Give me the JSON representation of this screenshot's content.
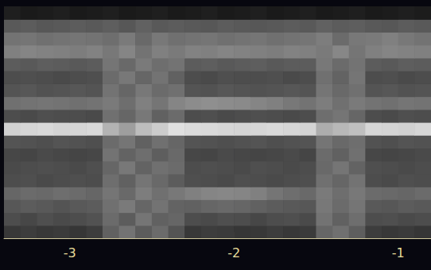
{
  "chart_data": {
    "type": "heatmap",
    "xlim": [
      -3.4,
      -0.8
    ],
    "xticks": [
      -3,
      -2,
      -1
    ],
    "ylim": [
      0,
      18
    ],
    "tick_labels": "x",
    "color_range": [
      0,
      1
    ],
    "x_bins": [
      -3.4,
      -3.3,
      -3.2,
      -3.1,
      -3.0,
      -2.9,
      -2.8,
      -2.7,
      -2.6,
      -2.5,
      -2.4,
      -2.3,
      -2.2,
      -2.1,
      -2.0,
      -1.9,
      -1.8,
      -1.7,
      -1.6,
      -1.5,
      -1.4,
      -1.3,
      -1.2,
      -1.1,
      -1.0,
      -0.9,
      -0.8
    ],
    "y_bins": [
      0,
      1,
      2,
      3,
      4,
      5,
      6,
      7,
      8,
      9,
      10,
      11,
      12,
      13,
      14,
      15,
      16,
      17,
      18
    ],
    "cells": [
      [
        0.22,
        0.24,
        0.22,
        0.23,
        0.21,
        0.24,
        0.38,
        0.45,
        0.36,
        0.42,
        0.33,
        0.22,
        0.24,
        0.23,
        0.21,
        0.22,
        0.24,
        0.22,
        0.23,
        0.4,
        0.44,
        0.37,
        0.24,
        0.22,
        0.23,
        0.21
      ],
      [
        0.3,
        0.28,
        0.31,
        0.29,
        0.3,
        0.32,
        0.42,
        0.36,
        0.46,
        0.38,
        0.4,
        0.3,
        0.29,
        0.31,
        0.3,
        0.28,
        0.3,
        0.31,
        0.29,
        0.45,
        0.38,
        0.43,
        0.3,
        0.31,
        0.29,
        0.3
      ],
      [
        0.34,
        0.36,
        0.35,
        0.33,
        0.35,
        0.36,
        0.44,
        0.48,
        0.4,
        0.45,
        0.39,
        0.38,
        0.4,
        0.41,
        0.4,
        0.38,
        0.36,
        0.35,
        0.34,
        0.47,
        0.42,
        0.46,
        0.35,
        0.34,
        0.36,
        0.35
      ],
      [
        0.4,
        0.42,
        0.41,
        0.43,
        0.42,
        0.4,
        0.46,
        0.41,
        0.49,
        0.44,
        0.47,
        0.5,
        0.52,
        0.53,
        0.52,
        0.5,
        0.46,
        0.43,
        0.41,
        0.48,
        0.43,
        0.47,
        0.42,
        0.41,
        0.4,
        0.42
      ],
      [
        0.3,
        0.31,
        0.29,
        0.3,
        0.31,
        0.3,
        0.43,
        0.38,
        0.46,
        0.41,
        0.36,
        0.31,
        0.3,
        0.29,
        0.31,
        0.3,
        0.29,
        0.3,
        0.31,
        0.44,
        0.4,
        0.45,
        0.3,
        0.29,
        0.31,
        0.3
      ],
      [
        0.29,
        0.3,
        0.31,
        0.3,
        0.29,
        0.31,
        0.4,
        0.47,
        0.39,
        0.44,
        0.42,
        0.3,
        0.31,
        0.3,
        0.29,
        0.31,
        0.3,
        0.29,
        0.3,
        0.41,
        0.46,
        0.39,
        0.31,
        0.3,
        0.29,
        0.3
      ],
      [
        0.28,
        0.27,
        0.29,
        0.28,
        0.27,
        0.28,
        0.45,
        0.39,
        0.43,
        0.37,
        0.41,
        0.28,
        0.27,
        0.29,
        0.28,
        0.27,
        0.28,
        0.29,
        0.27,
        0.42,
        0.38,
        0.44,
        0.28,
        0.27,
        0.28,
        0.29
      ],
      [
        0.33,
        0.32,
        0.31,
        0.33,
        0.32,
        0.31,
        0.42,
        0.46,
        0.38,
        0.44,
        0.4,
        0.33,
        0.32,
        0.31,
        0.32,
        0.33,
        0.31,
        0.32,
        0.33,
        0.46,
        0.41,
        0.43,
        0.32,
        0.31,
        0.33,
        0.32
      ],
      [
        0.82,
        0.84,
        0.85,
        0.83,
        0.84,
        0.85,
        0.7,
        0.62,
        0.74,
        0.8,
        0.88,
        0.86,
        0.85,
        0.84,
        0.83,
        0.84,
        0.85,
        0.84,
        0.83,
        0.68,
        0.72,
        0.75,
        0.84,
        0.83,
        0.82,
        0.84
      ],
      [
        0.3,
        0.29,
        0.31,
        0.3,
        0.3,
        0.29,
        0.44,
        0.4,
        0.47,
        0.38,
        0.42,
        0.3,
        0.31,
        0.29,
        0.3,
        0.31,
        0.3,
        0.29,
        0.3,
        0.43,
        0.46,
        0.4,
        0.3,
        0.29,
        0.31,
        0.3
      ],
      [
        0.44,
        0.45,
        0.46,
        0.45,
        0.44,
        0.45,
        0.48,
        0.43,
        0.5,
        0.46,
        0.52,
        0.55,
        0.56,
        0.55,
        0.54,
        0.52,
        0.5,
        0.47,
        0.45,
        0.49,
        0.44,
        0.48,
        0.45,
        0.44,
        0.46,
        0.45
      ],
      [
        0.33,
        0.34,
        0.32,
        0.33,
        0.34,
        0.33,
        0.45,
        0.4,
        0.47,
        0.42,
        0.44,
        0.33,
        0.32,
        0.34,
        0.33,
        0.32,
        0.33,
        0.34,
        0.33,
        0.46,
        0.41,
        0.44,
        0.33,
        0.34,
        0.32,
        0.33
      ],
      [
        0.3,
        0.31,
        0.3,
        0.29,
        0.3,
        0.31,
        0.42,
        0.47,
        0.4,
        0.45,
        0.38,
        0.3,
        0.29,
        0.31,
        0.3,
        0.3,
        0.31,
        0.29,
        0.3,
        0.44,
        0.39,
        0.46,
        0.3,
        0.31,
        0.29,
        0.3
      ],
      [
        0.36,
        0.35,
        0.37,
        0.36,
        0.35,
        0.36,
        0.46,
        0.41,
        0.48,
        0.43,
        0.45,
        0.36,
        0.37,
        0.35,
        0.36,
        0.37,
        0.35,
        0.36,
        0.36,
        0.47,
        0.42,
        0.45,
        0.36,
        0.35,
        0.37,
        0.36
      ],
      [
        0.5,
        0.52,
        0.51,
        0.5,
        0.49,
        0.51,
        0.47,
        0.52,
        0.45,
        0.5,
        0.48,
        0.51,
        0.5,
        0.52,
        0.51,
        0.5,
        0.49,
        0.51,
        0.5,
        0.48,
        0.53,
        0.46,
        0.5,
        0.52,
        0.51,
        0.5
      ],
      [
        0.45,
        0.46,
        0.44,
        0.45,
        0.46,
        0.45,
        0.43,
        0.48,
        0.41,
        0.47,
        0.44,
        0.45,
        0.46,
        0.44,
        0.45,
        0.46,
        0.44,
        0.45,
        0.46,
        0.49,
        0.42,
        0.47,
        0.48,
        0.5,
        0.47,
        0.45
      ],
      [
        0.35,
        0.36,
        0.34,
        0.35,
        0.36,
        0.35,
        0.37,
        0.34,
        0.38,
        0.35,
        0.36,
        0.35,
        0.34,
        0.36,
        0.35,
        0.34,
        0.35,
        0.36,
        0.35,
        0.38,
        0.36,
        0.37,
        0.35,
        0.34,
        0.36,
        0.35
      ],
      [
        0.12,
        0.1,
        0.11,
        0.12,
        0.1,
        0.11,
        0.12,
        0.1,
        0.11,
        0.12,
        0.1,
        0.11,
        0.12,
        0.1,
        0.11,
        0.12,
        0.1,
        0.11,
        0.12,
        0.1,
        0.11,
        0.12,
        0.1,
        0.11,
        0.12,
        0.11
      ]
    ]
  }
}
